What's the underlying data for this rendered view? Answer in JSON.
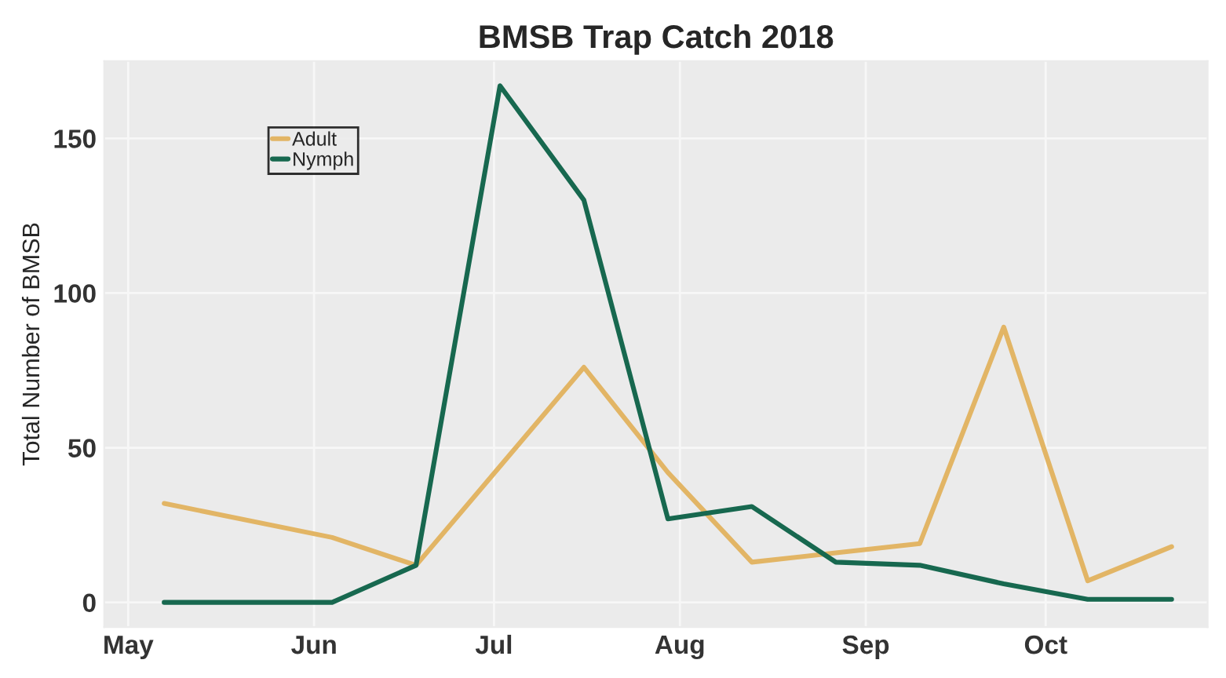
{
  "chart_data": {
    "type": "line",
    "title": "BMSB Trap Catch 2018",
    "ylabel": "Total Number of BMSB",
    "x": [
      "2018-05-07",
      "2018-06-04",
      "2018-06-18",
      "2018-07-02",
      "2018-07-16",
      "2018-07-30",
      "2018-08-13",
      "2018-08-27",
      "2018-09-10",
      "2018-09-24",
      "2018-10-08",
      "2018-10-22"
    ],
    "series": [
      {
        "name": "Adult",
        "color": "#e2b565",
        "values": [
          32,
          21,
          12,
          44,
          76,
          42,
          13,
          16,
          19,
          89,
          7,
          18
        ]
      },
      {
        "name": "Nymph",
        "color": "#17684f",
        "values": [
          0,
          0,
          12,
          167,
          130,
          27,
          31,
          13,
          12,
          6,
          1,
          1
        ]
      }
    ],
    "xlim": [
      "2018-04-27",
      "2018-10-28"
    ],
    "xticks": [
      {
        "value": "2018-05-01",
        "label": "May"
      },
      {
        "value": "2018-06-01",
        "label": "Jun"
      },
      {
        "value": "2018-07-01",
        "label": "Jul"
      },
      {
        "value": "2018-08-01",
        "label": "Aug"
      },
      {
        "value": "2018-09-01",
        "label": "Sep"
      },
      {
        "value": "2018-10-01",
        "label": "Oct"
      }
    ],
    "ylim": [
      -8,
      175
    ],
    "yticks": [
      0,
      50,
      100,
      150
    ],
    "grid": true,
    "legend": "top left",
    "line_style": "solid",
    "marker": "none"
  }
}
